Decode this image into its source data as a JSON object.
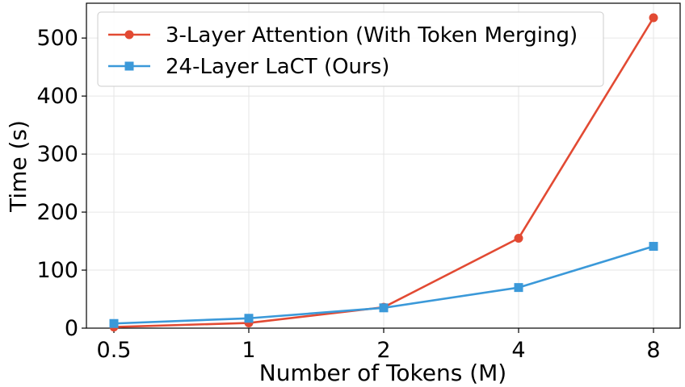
{
  "chart_data": {
    "type": "line",
    "title": "",
    "xlabel": "Number of Tokens (M)",
    "ylabel": "Time (s)",
    "categories": [
      "0.5",
      "1",
      "2",
      "4",
      "8"
    ],
    "xscale": "log2",
    "ylim": [
      0,
      560
    ],
    "yticks": [
      0,
      100,
      200,
      300,
      400,
      500
    ],
    "grid": true,
    "legend_position": "top-left",
    "series": [
      {
        "name": "3-Layer Attention (With Token Merging)",
        "color": "#e24a33",
        "marker": "circle",
        "values": [
          2,
          9,
          36,
          155,
          535
        ]
      },
      {
        "name": "24-Layer LaCT (Ours)",
        "color": "#3b99d9",
        "marker": "square",
        "values": [
          8,
          17,
          35,
          70,
          141
        ]
      }
    ]
  }
}
